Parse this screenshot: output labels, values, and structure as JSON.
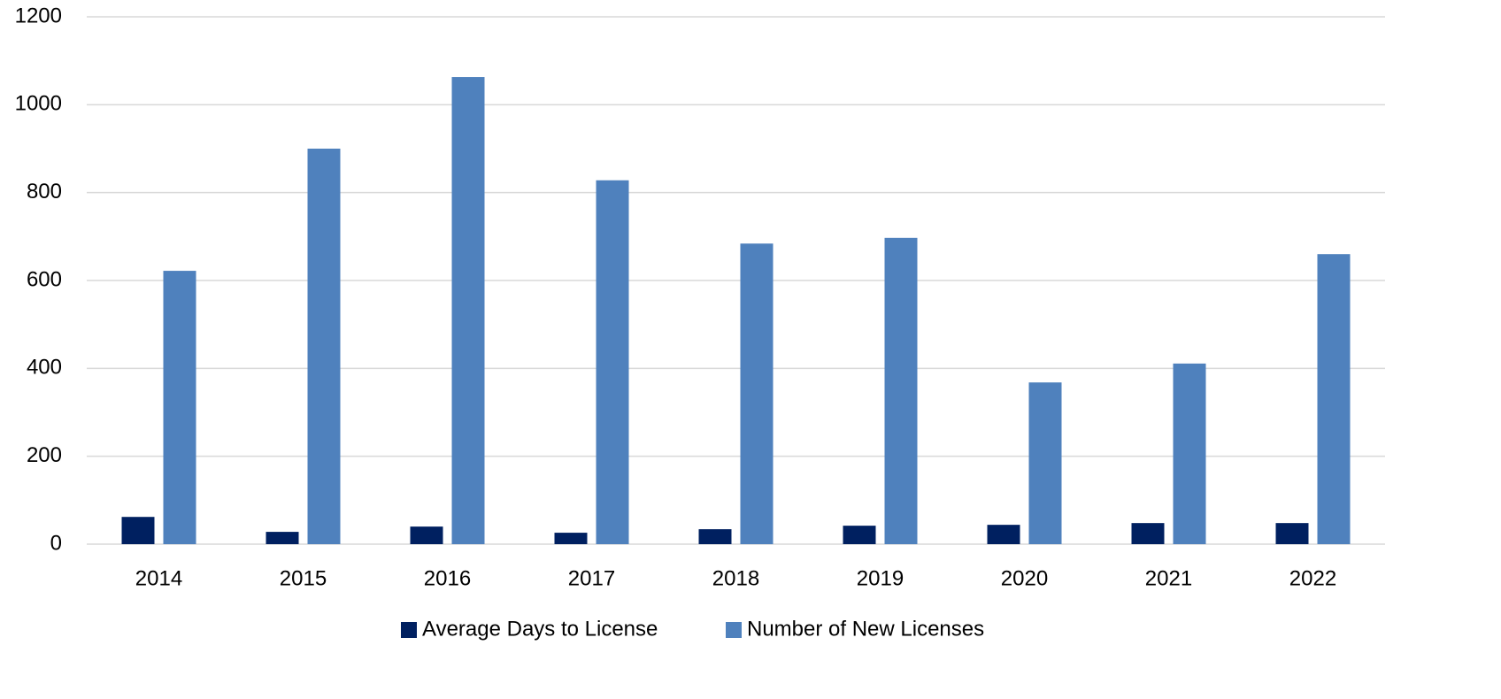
{
  "chart_data": {
    "type": "bar",
    "categories": [
      "2014",
      "2015",
      "2016",
      "2017",
      "2018",
      "2019",
      "2020",
      "2021",
      "2022"
    ],
    "series": [
      {
        "name": "Average Days to License",
        "color": "#002060",
        "values": [
          62,
          28,
          40,
          26,
          34,
          42,
          44,
          48,
          48
        ]
      },
      {
        "name": "Number of New Licenses",
        "color": "#4f81bd",
        "values": [
          622,
          900,
          1063,
          828,
          684,
          697,
          368,
          411,
          660
        ]
      }
    ],
    "ylim": [
      0,
      1200
    ],
    "yticks": [
      0,
      200,
      400,
      600,
      800,
      1000,
      1200
    ],
    "grid": true,
    "legend": "bottom"
  }
}
